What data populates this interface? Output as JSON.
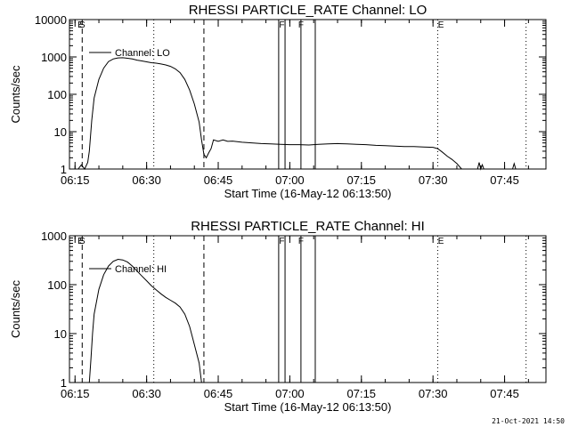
{
  "chart_data": [
    {
      "type": "line",
      "title": "RHESSI PARTICLE_RATE Channel: LO",
      "xlabel": "Start Time (16-May-12 06:13:50)",
      "ylabel": "Counts/sec",
      "yscale": "log",
      "ylim": [
        1,
        10000
      ],
      "xlim": [
        "06:13:50",
        "07:53:40"
      ],
      "xticks": [
        "06:15",
        "06:30",
        "06:45",
        "07:00",
        "07:15",
        "07:30",
        "07:45"
      ],
      "yticks": [
        "1",
        "10",
        "100",
        "1000",
        "10000"
      ],
      "legend": {
        "position": "top-left",
        "label": "Channel: LO"
      },
      "series": [
        {
          "name": "Channel: LO",
          "points": [
            [
              "06:15:40",
              1
            ],
            [
              "06:16:20",
              1.3
            ],
            [
              "06:17:00",
              1
            ],
            [
              "06:17:40",
              1.5
            ],
            [
              "06:18:00",
              3
            ],
            [
              "06:18:30",
              20
            ],
            [
              "06:19:00",
              80
            ],
            [
              "06:20:00",
              250
            ],
            [
              "06:21:00",
              500
            ],
            [
              "06:22:00",
              750
            ],
            [
              "06:23:00",
              880
            ],
            [
              "06:24:00",
              940
            ],
            [
              "06:25:00",
              950
            ],
            [
              "06:26:00",
              920
            ],
            [
              "06:27:00",
              880
            ],
            [
              "06:28:00",
              820
            ],
            [
              "06:29:00",
              780
            ],
            [
              "06:30:00",
              740
            ],
            [
              "06:31:00",
              700
            ],
            [
              "06:32:00",
              680
            ],
            [
              "06:33:00",
              650
            ],
            [
              "06:34:00",
              610
            ],
            [
              "06:35:00",
              560
            ],
            [
              "06:36:00",
              480
            ],
            [
              "06:37:00",
              380
            ],
            [
              "06:38:00",
              250
            ],
            [
              "06:39:00",
              130
            ],
            [
              "06:40:00",
              55
            ],
            [
              "06:41:00",
              18
            ],
            [
              "06:41:30",
              6
            ],
            [
              "06:42:00",
              2.5
            ],
            [
              "06:42:30",
              2
            ],
            [
              "06:43:00",
              2.7
            ],
            [
              "06:43:30",
              3.5
            ],
            [
              "06:44:00",
              6
            ],
            [
              "06:45:00",
              5.5
            ],
            [
              "06:46:00",
              6
            ],
            [
              "06:47:00",
              5.5
            ],
            [
              "06:48:00",
              5.6
            ],
            [
              "06:50:00",
              5.2
            ],
            [
              "06:52:00",
              5.0
            ],
            [
              "06:54:00",
              4.8
            ],
            [
              "06:56:00",
              4.7
            ],
            [
              "06:58:00",
              4.6
            ],
            [
              "07:00:00",
              4.5
            ],
            [
              "07:02:00",
              4.5
            ],
            [
              "07:04:00",
              4.4
            ],
            [
              "07:06:00",
              4.6
            ],
            [
              "07:08:00",
              4.7
            ],
            [
              "07:10:00",
              4.8
            ],
            [
              "07:12:00",
              4.7
            ],
            [
              "07:14:00",
              4.6
            ],
            [
              "07:16:00",
              4.5
            ],
            [
              "07:18:00",
              4.3
            ],
            [
              "07:20:00",
              4.2
            ],
            [
              "07:22:00",
              4.1
            ],
            [
              "07:24:00",
              4.0
            ],
            [
              "07:26:00",
              4.0
            ],
            [
              "07:28:00",
              3.9
            ],
            [
              "07:30:00",
              3.8
            ],
            [
              "07:31:00",
              3.5
            ],
            [
              "07:32:00",
              2.8
            ],
            [
              "07:33:00",
              2.2
            ],
            [
              "07:34:00",
              1.8
            ],
            [
              "07:35:00",
              1.4
            ],
            [
              "07:36:00",
              1
            ],
            [
              "07:39:20",
              1
            ],
            [
              "07:39:40",
              1.5
            ],
            [
              "07:40:00",
              1
            ],
            [
              "07:40:20",
              1.3
            ],
            [
              "07:40:40",
              1
            ],
            [
              "07:46:40",
              1
            ],
            [
              "07:47:00",
              1.4
            ],
            [
              "07:47:20",
              1
            ]
          ]
        }
      ],
      "markers": [
        {
          "label": "E",
          "time": "06:16:10"
        },
        {
          "label": "S",
          "time": "06:16:30"
        },
        {
          "label": "F",
          "time": "06:58:20"
        },
        {
          "label": "F",
          "time": "07:02:20"
        },
        {
          "label": "E",
          "time": "07:31:40"
        }
      ]
    },
    {
      "type": "line",
      "title": "RHESSI PARTICLE_RATE Channel: HI",
      "xlabel": "Start Time (16-May-12 06:13:50)",
      "ylabel": "Counts/sec",
      "yscale": "log",
      "ylim": [
        1,
        1000
      ],
      "xlim": [
        "06:13:50",
        "07:53:40"
      ],
      "xticks": [
        "06:15",
        "06:30",
        "06:45",
        "07:00",
        "07:15",
        "07:30",
        "07:45"
      ],
      "yticks": [
        "1",
        "10",
        "100",
        "1000"
      ],
      "legend": {
        "position": "top-left",
        "label": "Channel: HI"
      },
      "series": [
        {
          "name": "Channel: HI",
          "points": [
            [
              "06:18:00",
              1
            ],
            [
              "06:18:20",
              3
            ],
            [
              "06:18:40",
              10
            ],
            [
              "06:19:00",
              25
            ],
            [
              "06:20:00",
              80
            ],
            [
              "06:21:00",
              160
            ],
            [
              "06:22:00",
              240
            ],
            [
              "06:23:00",
              300
            ],
            [
              "06:24:00",
              330
            ],
            [
              "06:25:00",
              320
            ],
            [
              "06:26:00",
              290
            ],
            [
              "06:27:00",
              240
            ],
            [
              "06:28:00",
              190
            ],
            [
              "06:29:00",
              150
            ],
            [
              "06:30:00",
              120
            ],
            [
              "06:31:00",
              95
            ],
            [
              "06:32:00",
              78
            ],
            [
              "06:33:00",
              65
            ],
            [
              "06:34:00",
              55
            ],
            [
              "06:35:00",
              48
            ],
            [
              "06:36:00",
              42
            ],
            [
              "06:37:00",
              35
            ],
            [
              "06:38:00",
              25
            ],
            [
              "06:39:00",
              14
            ],
            [
              "06:40:00",
              6
            ],
            [
              "06:41:00",
              2.5
            ],
            [
              "06:41:30",
              1
            ]
          ]
        }
      ],
      "markers": [
        {
          "label": "E",
          "time": "06:16:10"
        },
        {
          "label": "S",
          "time": "06:16:30"
        },
        {
          "label": "F",
          "time": "06:58:20"
        },
        {
          "label": "F",
          "time": "07:02:20"
        },
        {
          "label": "E",
          "time": "07:31:40"
        }
      ]
    }
  ],
  "footer": {
    "stamp": "21-Oct-2021 14:50"
  }
}
